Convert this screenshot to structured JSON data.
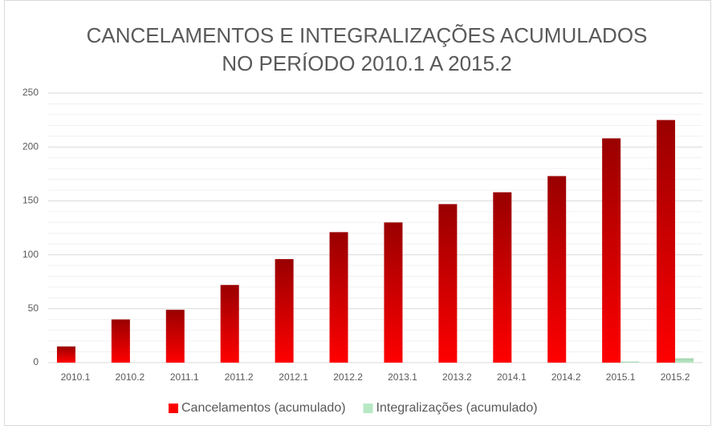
{
  "chart_data": {
    "type": "bar",
    "title": [
      "CANCELAMENTOS E INTEGRALIZAÇÕES ACUMULADOS",
      "NO PERÍODO 2010.1 A 2015.2"
    ],
    "categories": [
      "2010.1",
      "2010.2",
      "2011.1",
      "2011.2",
      "2012.1",
      "2012.2",
      "2013.1",
      "2013.2",
      "2014.1",
      "2014.2",
      "2015.1",
      "2015.2"
    ],
    "series": [
      {
        "name": "Cancelamentos (acumulado)",
        "color": "#ff0000",
        "values": [
          15,
          40,
          49,
          72,
          96,
          121,
          130,
          147,
          158,
          173,
          208,
          225
        ]
      },
      {
        "name": "Integralizações (acumulado)",
        "color": "#b7e8c4",
        "values": [
          0,
          0,
          0,
          0,
          0,
          0,
          0,
          0,
          0,
          0,
          1,
          4
        ]
      }
    ],
    "ylim": [
      0,
      250
    ],
    "yticks": [
      0,
      50,
      100,
      150,
      200,
      250
    ],
    "minor_yticks": [
      10,
      20,
      30,
      40,
      60,
      70,
      80,
      90,
      110,
      120,
      130,
      140,
      160,
      170,
      180,
      190,
      210,
      220,
      230,
      240
    ],
    "grid": true,
    "legend": "bottom"
  }
}
